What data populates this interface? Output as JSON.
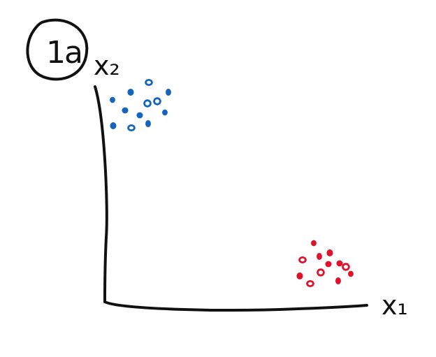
{
  "chart_data": {
    "type": "scatter",
    "title": "1a",
    "xlabel": "x₁",
    "ylabel": "x₂",
    "series": [
      {
        "color": "#1565c0",
        "points": 12
      },
      {
        "color": "#e0112b",
        "points": 12
      }
    ]
  }
}
